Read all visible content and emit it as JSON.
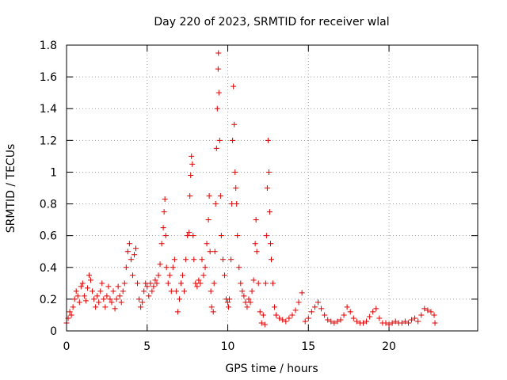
{
  "chart_data": {
    "type": "scatter",
    "title": "Day 220 of 2023, SRMTID for receiver wlal",
    "xlabel": "GPS time / hours",
    "ylabel": "SRMTID / TECUs",
    "xlim": [
      0,
      25.5
    ],
    "ylim": [
      0,
      1.8
    ],
    "xticks": [
      0,
      5,
      10,
      15,
      20
    ],
    "xtick_labels": [
      "0",
      "5",
      "10",
      "15",
      "20"
    ],
    "yticks": [
      0,
      0.2,
      0.4,
      0.6,
      0.8,
      1.0,
      1.2,
      1.4,
      1.6,
      1.8
    ],
    "ytick_labels": [
      "0",
      "0.2",
      "0.4",
      "0.6",
      "0.8",
      "1",
      "1.2",
      "1.4",
      "1.6",
      "1.8"
    ],
    "grid": true,
    "marker": "+",
    "color": "#e00000",
    "series": [
      {
        "name": "SRMTID",
        "points": [
          [
            0.0,
            0.05
          ],
          [
            0.1,
            0.08
          ],
          [
            0.2,
            0.12
          ],
          [
            0.3,
            0.1
          ],
          [
            0.4,
            0.15
          ],
          [
            0.5,
            0.2
          ],
          [
            0.6,
            0.25
          ],
          [
            0.7,
            0.22
          ],
          [
            0.8,
            0.18
          ],
          [
            0.9,
            0.28
          ],
          [
            1.0,
            0.3
          ],
          [
            1.1,
            0.22
          ],
          [
            1.2,
            0.19
          ],
          [
            1.3,
            0.27
          ],
          [
            1.4,
            0.35
          ],
          [
            1.5,
            0.32
          ],
          [
            1.6,
            0.25
          ],
          [
            1.7,
            0.2
          ],
          [
            1.8,
            0.15
          ],
          [
            1.9,
            0.22
          ],
          [
            2.0,
            0.18
          ],
          [
            2.1,
            0.25
          ],
          [
            2.2,
            0.3
          ],
          [
            2.3,
            0.2
          ],
          [
            2.4,
            0.15
          ],
          [
            2.5,
            0.22
          ],
          [
            2.6,
            0.28
          ],
          [
            2.7,
            0.2
          ],
          [
            2.8,
            0.18
          ],
          [
            2.9,
            0.25
          ],
          [
            3.0,
            0.14
          ],
          [
            3.1,
            0.2
          ],
          [
            3.2,
            0.28
          ],
          [
            3.3,
            0.22
          ],
          [
            3.4,
            0.18
          ],
          [
            3.5,
            0.25
          ],
          [
            3.6,
            0.3
          ],
          [
            3.7,
            0.4
          ],
          [
            3.8,
            0.5
          ],
          [
            3.9,
            0.55
          ],
          [
            4.0,
            0.45
          ],
          [
            4.1,
            0.35
          ],
          [
            4.2,
            0.48
          ],
          [
            4.3,
            0.52
          ],
          [
            4.4,
            0.3
          ],
          [
            4.5,
            0.2
          ],
          [
            4.6,
            0.15
          ],
          [
            4.7,
            0.18
          ],
          [
            4.8,
            0.25
          ],
          [
            4.9,
            0.3
          ],
          [
            5.0,
            0.28
          ],
          [
            5.1,
            0.22
          ],
          [
            5.2,
            0.3
          ],
          [
            5.3,
            0.25
          ],
          [
            5.4,
            0.28
          ],
          [
            5.5,
            0.32
          ],
          [
            5.6,
            0.3
          ],
          [
            5.7,
            0.35
          ],
          [
            5.8,
            0.42
          ],
          [
            5.9,
            0.55
          ],
          [
            6.0,
            0.65
          ],
          [
            6.05,
            0.75
          ],
          [
            6.1,
            0.83
          ],
          [
            6.15,
            0.6
          ],
          [
            6.2,
            0.4
          ],
          [
            6.3,
            0.3
          ],
          [
            6.4,
            0.35
          ],
          [
            6.5,
            0.25
          ],
          [
            6.6,
            0.4
          ],
          [
            6.7,
            0.45
          ],
          [
            6.8,
            0.25
          ],
          [
            6.9,
            0.12
          ],
          [
            7.0,
            0.2
          ],
          [
            7.1,
            0.3
          ],
          [
            7.2,
            0.35
          ],
          [
            7.3,
            0.25
          ],
          [
            7.4,
            0.45
          ],
          [
            7.5,
            0.6
          ],
          [
            7.6,
            0.62
          ],
          [
            7.65,
            0.85
          ],
          [
            7.7,
            0.98
          ],
          [
            7.75,
            1.1
          ],
          [
            7.8,
            1.05
          ],
          [
            7.85,
            0.6
          ],
          [
            7.9,
            0.45
          ],
          [
            8.0,
            0.3
          ],
          [
            8.1,
            0.28
          ],
          [
            8.2,
            0.32
          ],
          [
            8.3,
            0.3
          ],
          [
            8.4,
            0.45
          ],
          [
            8.5,
            0.35
          ],
          [
            8.6,
            0.4
          ],
          [
            8.7,
            0.55
          ],
          [
            8.8,
            0.7
          ],
          [
            8.85,
            0.85
          ],
          [
            8.9,
            0.5
          ],
          [
            8.95,
            0.25
          ],
          [
            9.0,
            0.15
          ],
          [
            9.1,
            0.12
          ],
          [
            9.15,
            0.3
          ],
          [
            9.2,
            0.5
          ],
          [
            9.25,
            0.8
          ],
          [
            9.3,
            1.15
          ],
          [
            9.35,
            1.4
          ],
          [
            9.4,
            1.65
          ],
          [
            9.42,
            1.75
          ],
          [
            9.45,
            1.5
          ],
          [
            9.5,
            1.2
          ],
          [
            9.55,
            0.85
          ],
          [
            9.6,
            0.6
          ],
          [
            9.7,
            0.45
          ],
          [
            9.8,
            0.35
          ],
          [
            9.9,
            0.2
          ],
          [
            10.0,
            0.18
          ],
          [
            10.05,
            0.15
          ],
          [
            10.1,
            0.2
          ],
          [
            10.2,
            0.45
          ],
          [
            10.25,
            0.8
          ],
          [
            10.3,
            1.2
          ],
          [
            10.35,
            1.54
          ],
          [
            10.4,
            1.3
          ],
          [
            10.45,
            1.0
          ],
          [
            10.5,
            0.9
          ],
          [
            10.55,
            0.8
          ],
          [
            10.6,
            0.6
          ],
          [
            10.7,
            0.4
          ],
          [
            10.8,
            0.3
          ],
          [
            10.9,
            0.25
          ],
          [
            11.0,
            0.22
          ],
          [
            11.1,
            0.18
          ],
          [
            11.2,
            0.15
          ],
          [
            11.3,
            0.2
          ],
          [
            11.4,
            0.18
          ],
          [
            11.5,
            0.25
          ],
          [
            11.6,
            0.32
          ],
          [
            11.7,
            0.55
          ],
          [
            11.75,
            0.7
          ],
          [
            11.8,
            0.5
          ],
          [
            11.9,
            0.3
          ],
          [
            12.0,
            0.12
          ],
          [
            12.1,
            0.05
          ],
          [
            12.2,
            0.1
          ],
          [
            12.3,
            0.04
          ],
          [
            12.35,
            0.3
          ],
          [
            12.4,
            0.6
          ],
          [
            12.45,
            0.9
          ],
          [
            12.5,
            1.2
          ],
          [
            12.55,
            1.0
          ],
          [
            12.6,
            0.75
          ],
          [
            12.65,
            0.55
          ],
          [
            12.7,
            0.45
          ],
          [
            12.8,
            0.3
          ],
          [
            12.9,
            0.15
          ],
          [
            13.0,
            0.1
          ],
          [
            13.2,
            0.08
          ],
          [
            13.4,
            0.07
          ],
          [
            13.6,
            0.06
          ],
          [
            13.8,
            0.08
          ],
          [
            14.0,
            0.1
          ],
          [
            14.2,
            0.13
          ],
          [
            14.4,
            0.18
          ],
          [
            14.6,
            0.24
          ],
          [
            14.8,
            0.06
          ],
          [
            15.0,
            0.08
          ],
          [
            15.2,
            0.12
          ],
          [
            15.4,
            0.15
          ],
          [
            15.6,
            0.18
          ],
          [
            15.8,
            0.14
          ],
          [
            16.0,
            0.1
          ],
          [
            16.2,
            0.07
          ],
          [
            16.4,
            0.06
          ],
          [
            16.6,
            0.05
          ],
          [
            16.8,
            0.06
          ],
          [
            17.0,
            0.07
          ],
          [
            17.2,
            0.1
          ],
          [
            17.4,
            0.15
          ],
          [
            17.6,
            0.12
          ],
          [
            17.8,
            0.08
          ],
          [
            18.0,
            0.06
          ],
          [
            18.2,
            0.05
          ],
          [
            18.4,
            0.05
          ],
          [
            18.6,
            0.06
          ],
          [
            18.8,
            0.09
          ],
          [
            19.0,
            0.12
          ],
          [
            19.2,
            0.14
          ],
          [
            19.4,
            0.08
          ],
          [
            19.6,
            0.05
          ],
          [
            19.8,
            0.05
          ],
          [
            20.0,
            0.04
          ],
          [
            20.2,
            0.05
          ],
          [
            20.4,
            0.06
          ],
          [
            20.6,
            0.05
          ],
          [
            20.8,
            0.05
          ],
          [
            21.0,
            0.06
          ],
          [
            21.2,
            0.05
          ],
          [
            21.4,
            0.07
          ],
          [
            21.6,
            0.08
          ],
          [
            21.8,
            0.06
          ],
          [
            22.0,
            0.1
          ],
          [
            22.2,
            0.14
          ],
          [
            22.4,
            0.13
          ],
          [
            22.6,
            0.12
          ],
          [
            22.8,
            0.1
          ],
          [
            22.85,
            0.05
          ]
        ]
      }
    ]
  }
}
